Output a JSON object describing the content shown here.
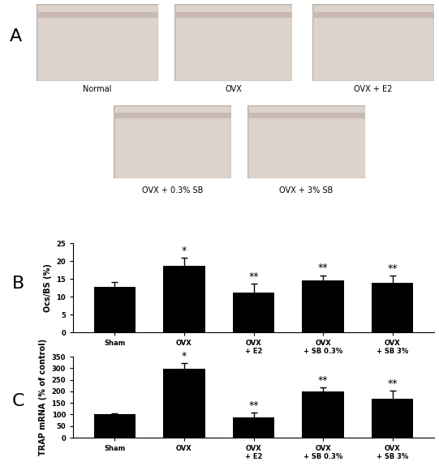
{
  "images": {
    "panel": "A",
    "captions": [
      "Normal",
      "OVX",
      "OVX + E2",
      "OVX + 0.3% SB",
      "OVX + 3% SB"
    ]
  },
  "chart_data": [
    {
      "type": "bar",
      "panel": "B",
      "categories": [
        "Sham",
        "OVX",
        "OVX\n+ E2",
        "OVX\n+ SB 0.3%",
        "OVX\n+ SB 3%"
      ],
      "values": [
        12.8,
        18.6,
        11.2,
        14.5,
        13.8
      ],
      "errors": [
        1.3,
        2.2,
        2.5,
        1.5,
        2.1
      ],
      "annotations": [
        null,
        "*",
        "**",
        "**",
        "**"
      ],
      "y_label": "Ocs/BS (%)",
      "ylim": [
        0,
        25
      ],
      "yticks": [
        0,
        5,
        10,
        15,
        20,
        25
      ],
      "color": "#000000"
    },
    {
      "type": "bar",
      "panel": "C",
      "categories": [
        "Sham",
        "OVX",
        "OVX\n+ E2",
        "OVX\n+ SB 0.3%",
        "OVX\n+ SB 3%"
      ],
      "values": [
        100,
        297,
        88,
        198,
        168
      ],
      "errors": [
        6,
        25,
        20,
        20,
        35
      ],
      "annotations": [
        null,
        "*",
        "**",
        "**",
        "**"
      ],
      "y_label": "TRAP mRNA (% of control)",
      "ylim": [
        0,
        350
      ],
      "yticks": [
        0,
        50,
        100,
        150,
        200,
        250,
        300,
        350
      ],
      "color": "#000000"
    }
  ]
}
